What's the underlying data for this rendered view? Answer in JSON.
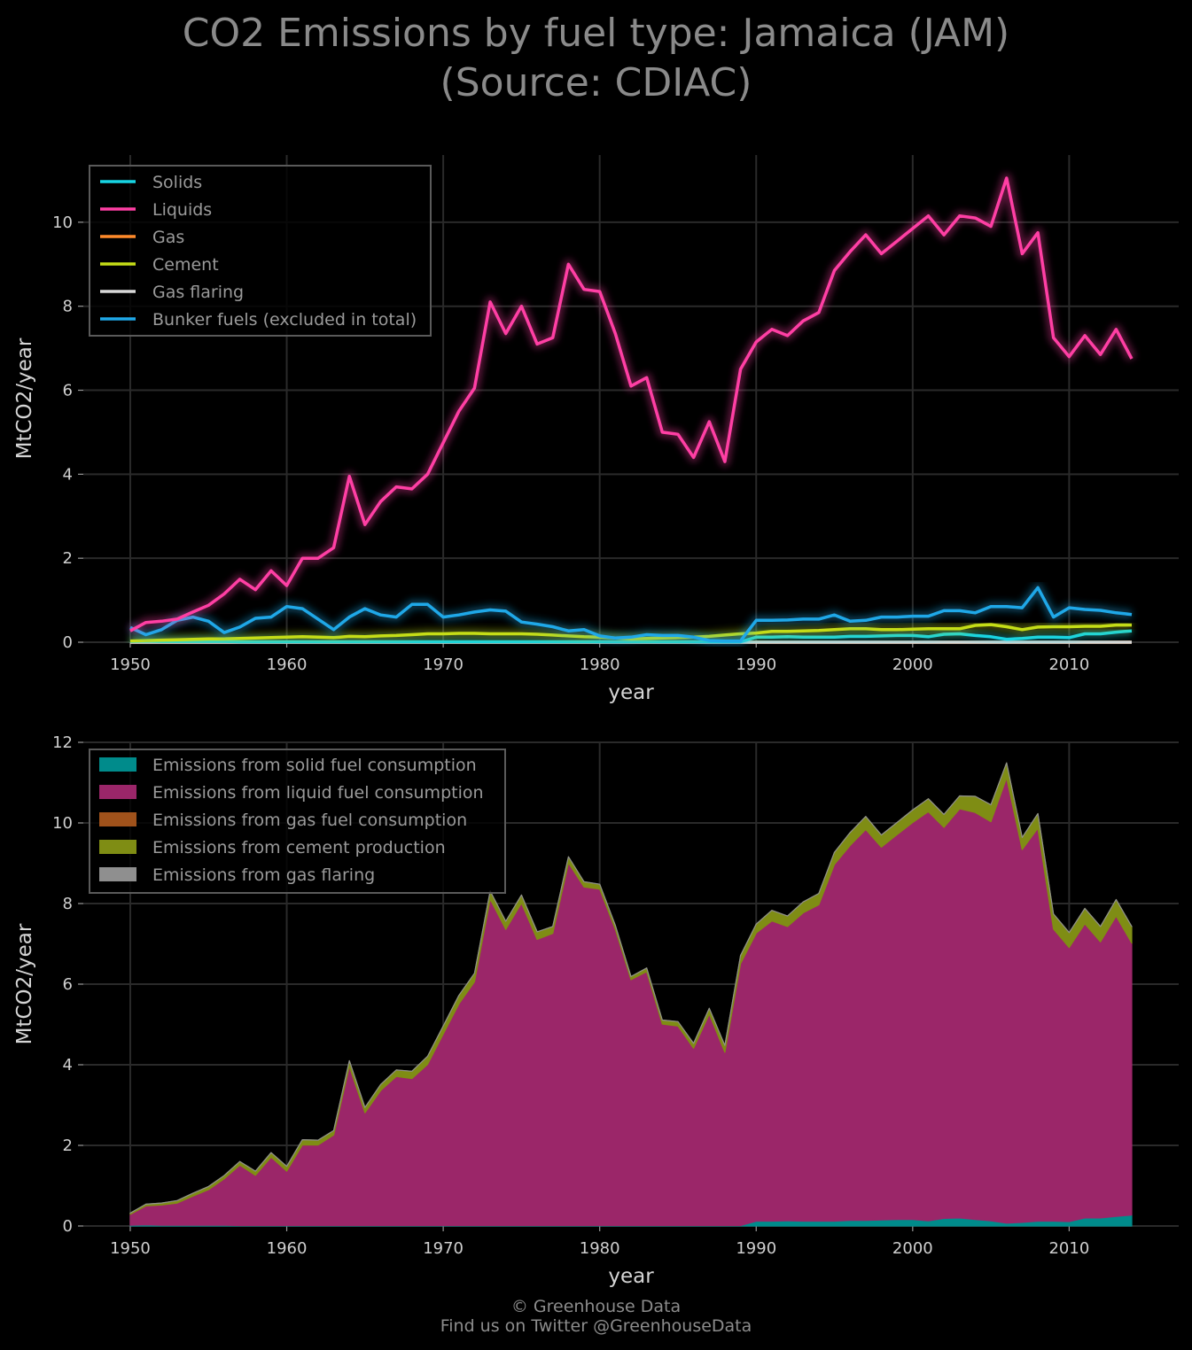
{
  "title_line1": "CO2 Emissions by fuel type: Jamaica (JAM)",
  "title_line2": "(Source: CDIAC)",
  "footer_line1": "© Greenhouse Data",
  "footer_line2": "Find us on Twitter @GreenhouseData",
  "colors": {
    "solids": "#17d4e3",
    "liquids": "#ff3fa4",
    "gas": "#ff8a2a",
    "cement": "#c5dd17",
    "flaring": "#d8d8d8",
    "bunker": "#1fa8e8",
    "area_solid": "#008b8b",
    "area_liquid": "#9b2669",
    "area_gas": "#a0521b",
    "area_cement": "#7f8d14",
    "area_flaring": "#8f8f8f"
  },
  "chart_data": [
    {
      "type": "line",
      "xlabel": "year",
      "ylabel": "MtCO2/year",
      "xlim": [
        1947,
        2017
      ],
      "ylim": [
        0,
        11.6
      ],
      "xticks": [
        1950,
        1960,
        1970,
        1980,
        1990,
        2000,
        2010
      ],
      "yticks": [
        0,
        2,
        4,
        6,
        8,
        10
      ],
      "grid": true,
      "legend_position": "top-left",
      "x": [
        1950,
        1951,
        1952,
        1953,
        1954,
        1955,
        1956,
        1957,
        1958,
        1959,
        1960,
        1961,
        1962,
        1963,
        1964,
        1965,
        1966,
        1967,
        1968,
        1969,
        1970,
        1971,
        1972,
        1973,
        1974,
        1975,
        1976,
        1977,
        1978,
        1979,
        1980,
        1981,
        1982,
        1983,
        1984,
        1985,
        1986,
        1987,
        1988,
        1989,
        1990,
        1991,
        1992,
        1993,
        1994,
        1995,
        1996,
        1997,
        1998,
        1999,
        2000,
        2001,
        2002,
        2003,
        2004,
        2005,
        2006,
        2007,
        2008,
        2009,
        2010,
        2011,
        2012,
        2013,
        2014
      ],
      "series": [
        {
          "name": "Solids",
          "color_key": "solids",
          "values": [
            0.02,
            0.03,
            0.02,
            0.02,
            0.02,
            0.02,
            0.02,
            0.01,
            0.01,
            0.01,
            0.01,
            0.01,
            0.01,
            0.01,
            0.01,
            0.01,
            0.01,
            0.01,
            0.01,
            0.01,
            0.01,
            0.01,
            0.01,
            0.01,
            0.01,
            0.01,
            0.01,
            0.01,
            0.01,
            0.01,
            0.01,
            0.01,
            0.01,
            0.01,
            0.01,
            0.01,
            0.01,
            0.01,
            0.01,
            0.01,
            0.12,
            0.12,
            0.13,
            0.12,
            0.12,
            0.12,
            0.14,
            0.14,
            0.15,
            0.16,
            0.16,
            0.13,
            0.19,
            0.2,
            0.16,
            0.13,
            0.07,
            0.09,
            0.12,
            0.12,
            0.11,
            0.2,
            0.2,
            0.24,
            0.27
          ]
        },
        {
          "name": "Liquids",
          "color_key": "liquids",
          "values": [
            0.27,
            0.47,
            0.5,
            0.55,
            0.72,
            0.88,
            1.15,
            1.5,
            1.25,
            1.7,
            1.35,
            2.0,
            2.0,
            2.25,
            3.95,
            2.8,
            3.35,
            3.7,
            3.65,
            4.0,
            4.75,
            5.5,
            6.05,
            8.1,
            7.35,
            8.0,
            7.1,
            7.25,
            9.0,
            8.4,
            8.35,
            7.35,
            6.1,
            6.3,
            5.0,
            4.95,
            4.4,
            5.25,
            4.3,
            6.5,
            7.15,
            7.45,
            7.3,
            7.65,
            7.85,
            8.85,
            9.3,
            9.7,
            9.25,
            9.55,
            9.85,
            10.15,
            9.7,
            10.15,
            10.1,
            9.9,
            11.05,
            9.25,
            9.75,
            7.25,
            6.8,
            7.3,
            6.85,
            7.45,
            6.75
          ]
        },
        {
          "name": "Gas",
          "color_key": "gas",
          "values": [
            0,
            0,
            0,
            0,
            0,
            0,
            0,
            0,
            0,
            0,
            0,
            0,
            0,
            0,
            0,
            0,
            0,
            0,
            0,
            0,
            0,
            0,
            0,
            0,
            0,
            0,
            0,
            0,
            0,
            0,
            0,
            0,
            0,
            0,
            0,
            0,
            0,
            0,
            0,
            0,
            0,
            0,
            0,
            0,
            0,
            0,
            0,
            0,
            0,
            0,
            0,
            0,
            0,
            0,
            0,
            0,
            0,
            0,
            0,
            0,
            0,
            0,
            0,
            0,
            0
          ]
        },
        {
          "name": "Cement",
          "color_key": "cement",
          "values": [
            0.03,
            0.04,
            0.05,
            0.06,
            0.07,
            0.08,
            0.08,
            0.09,
            0.1,
            0.11,
            0.12,
            0.13,
            0.12,
            0.11,
            0.14,
            0.13,
            0.15,
            0.16,
            0.18,
            0.2,
            0.2,
            0.21,
            0.21,
            0.2,
            0.2,
            0.2,
            0.19,
            0.17,
            0.15,
            0.13,
            0.12,
            0.1,
            0.08,
            0.09,
            0.1,
            0.11,
            0.12,
            0.14,
            0.17,
            0.2,
            0.22,
            0.26,
            0.26,
            0.27,
            0.28,
            0.3,
            0.32,
            0.32,
            0.3,
            0.3,
            0.31,
            0.32,
            0.32,
            0.32,
            0.4,
            0.42,
            0.37,
            0.3,
            0.36,
            0.37,
            0.37,
            0.38,
            0.38,
            0.41,
            0.41
          ]
        },
        {
          "name": "Gas flaring",
          "color_key": "flaring",
          "values": [
            0,
            0,
            0,
            0,
            0,
            0,
            0,
            0,
            0,
            0,
            0,
            0,
            0,
            0,
            0,
            0,
            0,
            0,
            0,
            0,
            0,
            0,
            0,
            0,
            0,
            0,
            0,
            0,
            0,
            0,
            0,
            0,
            0,
            0,
            0,
            0,
            0,
            0,
            0,
            0,
            0,
            0,
            0,
            0,
            0,
            0,
            0,
            0,
            0,
            0,
            0,
            0,
            0,
            0,
            0,
            0,
            0,
            0,
            0,
            0,
            0,
            0,
            0,
            0,
            0
          ]
        },
        {
          "name": "Bunker fuels (excluded in total)",
          "color_key": "bunker",
          "values": [
            0.35,
            0.18,
            0.3,
            0.52,
            0.6,
            0.5,
            0.23,
            0.36,
            0.57,
            0.6,
            0.85,
            0.8,
            0.55,
            0.3,
            0.6,
            0.8,
            0.65,
            0.6,
            0.9,
            0.9,
            0.6,
            0.65,
            0.72,
            0.77,
            0.74,
            0.48,
            0.43,
            0.37,
            0.27,
            0.3,
            0.15,
            0.1,
            0.12,
            0.18,
            0.16,
            0.16,
            0.12,
            0.04,
            0.03,
            0.03,
            0.52,
            0.52,
            0.53,
            0.55,
            0.55,
            0.65,
            0.5,
            0.52,
            0.6,
            0.6,
            0.62,
            0.62,
            0.75,
            0.75,
            0.7,
            0.85,
            0.85,
            0.82,
            1.3,
            0.6,
            0.82,
            0.78,
            0.76,
            0.7,
            0.66
          ]
        }
      ]
    },
    {
      "type": "area",
      "stacked": true,
      "xlabel": "year",
      "ylabel": "MtCO2/year",
      "xlim": [
        1947,
        2017
      ],
      "ylim": [
        0,
        12
      ],
      "xticks": [
        1950,
        1960,
        1970,
        1980,
        1990,
        2000,
        2010
      ],
      "yticks": [
        0,
        2,
        4,
        6,
        8,
        10,
        12
      ],
      "grid": true,
      "legend_position": "top-left",
      "series": [
        {
          "name": "Emissions from solid fuel consumption",
          "color_key": "area_solid",
          "source": "Solids"
        },
        {
          "name": "Emissions from liquid fuel consumption",
          "color_key": "area_liquid",
          "source": "Liquids"
        },
        {
          "name": "Emissions from gas fuel consumption",
          "color_key": "area_gas",
          "source": "Gas"
        },
        {
          "name": "Emissions from cement production",
          "color_key": "area_cement",
          "source": "Cement"
        },
        {
          "name": "Emissions from gas flaring",
          "color_key": "area_flaring",
          "source": "Gas flaring"
        }
      ]
    }
  ]
}
